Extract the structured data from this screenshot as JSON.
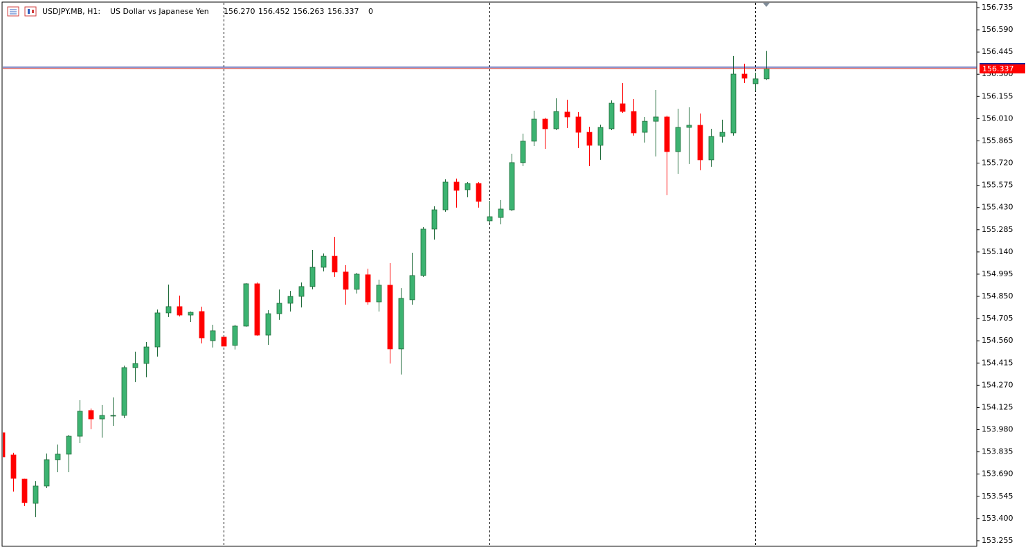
{
  "chart_data": {
    "type": "candlestick",
    "title": "USDJPY.MB, H1:",
    "subtitle": "US Dollar vs Japanese Yen",
    "header_values": [
      "156.270",
      "156.452",
      "156.263",
      "156.337",
      "0"
    ],
    "up_color": "#3cb371",
    "down_color": "#ff0000",
    "open": [
      153.96,
      153.815,
      153.657,
      153.499,
      153.612,
      153.784,
      153.82,
      153.937,
      154.105,
      154.05,
      154.073,
      154.073,
      154.385,
      154.412,
      154.52,
      154.742,
      154.783,
      154.728,
      154.751,
      154.561,
      154.584,
      154.53,
      154.656,
      154.932,
      154.597,
      154.737,
      154.805,
      154.85,
      154.914,
      155.04,
      155.112,
      155.009,
      154.896,
      154.991,
      154.814,
      154.923,
      154.507,
      154.828,
      154.986,
      155.289,
      155.415,
      155.596,
      155.546,
      155.587,
      155.343,
      155.365,
      155.415,
      155.723,
      155.863,
      156.007,
      155.944,
      156.053,
      156.021,
      155.921,
      155.836,
      155.944,
      156.107,
      156.057,
      155.921,
      155.993,
      156.021,
      155.795,
      155.953,
      155.967,
      155.741,
      155.894,
      155.917,
      156.301,
      156.238,
      156.27
    ],
    "high": [
      153.96,
      153.829,
      153.66,
      153.644,
      153.824,
      153.883,
      153.946,
      154.172,
      154.118,
      154.141,
      154.19,
      154.398,
      154.489,
      154.552,
      154.764,
      154.927,
      154.855,
      154.751,
      154.783,
      154.665,
      154.584,
      154.665,
      154.936,
      154.941,
      154.76,
      154.895,
      154.886,
      154.941,
      155.153,
      155.13,
      155.239,
      155.054,
      155.004,
      155.031,
      154.959,
      155.067,
      154.904,
      155.135,
      155.302,
      155.438,
      155.614,
      155.619,
      155.596,
      155.596,
      155.474,
      155.479,
      155.781,
      155.912,
      156.062,
      156.016,
      156.143,
      156.134,
      156.053,
      155.957,
      155.971,
      156.129,
      156.242,
      156.138,
      156.021,
      156.197,
      156.03,
      156.075,
      156.084,
      156.044,
      155.944,
      156.003,
      156.419,
      156.369,
      156.31,
      156.452
    ],
    "low": [
      153.802,
      153.576,
      153.481,
      153.409,
      153.598,
      153.702,
      153.702,
      153.892,
      153.983,
      153.928,
      154.005,
      154.055,
      154.29,
      154.322,
      154.457,
      154.715,
      154.719,
      154.683,
      154.543,
      154.516,
      154.525,
      154.503,
      154.652,
      154.593,
      154.534,
      154.697,
      154.751,
      154.778,
      154.896,
      155.013,
      154.977,
      154.796,
      154.869,
      154.796,
      154.751,
      154.412,
      154.34,
      154.796,
      154.977,
      155.221,
      155.402,
      155.429,
      155.497,
      155.429,
      155.329,
      155.32,
      155.406,
      155.7,
      155.831,
      155.813,
      155.935,
      155.949,
      155.818,
      155.7,
      155.741,
      155.935,
      156.048,
      155.899,
      155.854,
      155.763,
      155.51,
      155.65,
      155.714,
      155.673,
      155.696,
      155.854,
      155.899,
      156.242,
      156.193,
      156.263
    ],
    "close": [
      153.802,
      153.662,
      153.504,
      153.612,
      153.784,
      153.82,
      153.937,
      154.1,
      154.05,
      154.073,
      154.073,
      154.385,
      154.412,
      154.52,
      154.742,
      154.783,
      154.728,
      154.746,
      154.579,
      154.625,
      154.525,
      154.656,
      154.932,
      154.597,
      154.737,
      154.805,
      154.85,
      154.914,
      155.04,
      155.112,
      155.009,
      154.896,
      154.995,
      154.814,
      154.923,
      154.507,
      154.837,
      154.986,
      155.289,
      155.415,
      155.596,
      155.542,
      155.587,
      155.47,
      155.37,
      155.42,
      155.723,
      155.863,
      156.007,
      155.944,
      156.057,
      156.021,
      155.921,
      155.836,
      155.953,
      156.111,
      156.057,
      155.917,
      155.993,
      156.021,
      155.795,
      155.953,
      155.967,
      155.741,
      155.894,
      155.921,
      156.301,
      156.274,
      156.27,
      156.337
    ],
    "bid": 156.337,
    "ask": 156.346,
    "ylim": [
      153.214,
      156.771
    ],
    "yticks": [
      153.255,
      {
        "value": 153.4,
        "label": "153.400"
      },
      153.545,
      {
        "value": 153.69,
        "label": "153.690"
      },
      153.835,
      {
        "value": 153.98,
        "label": "153.980"
      },
      154.125,
      {
        "value": 154.27,
        "label": "154.270"
      },
      154.415,
      {
        "value": 154.56,
        "label": "154.560"
      },
      154.705,
      {
        "value": 154.85,
        "label": "154.850"
      },
      154.995,
      {
        "value": 155.14,
        "label": "155.140"
      },
      155.285,
      {
        "value": 155.43,
        "label": "155.430"
      },
      155.575,
      {
        "value": 155.72,
        "label": "155.720"
      },
      155.865,
      {
        "value": 156.01,
        "label": "156.010"
      },
      156.155,
      {
        "value": 156.3,
        "label": "156.300"
      },
      156.445,
      {
        "value": 156.59,
        "label": "156.590"
      },
      156.735
    ]
  }
}
